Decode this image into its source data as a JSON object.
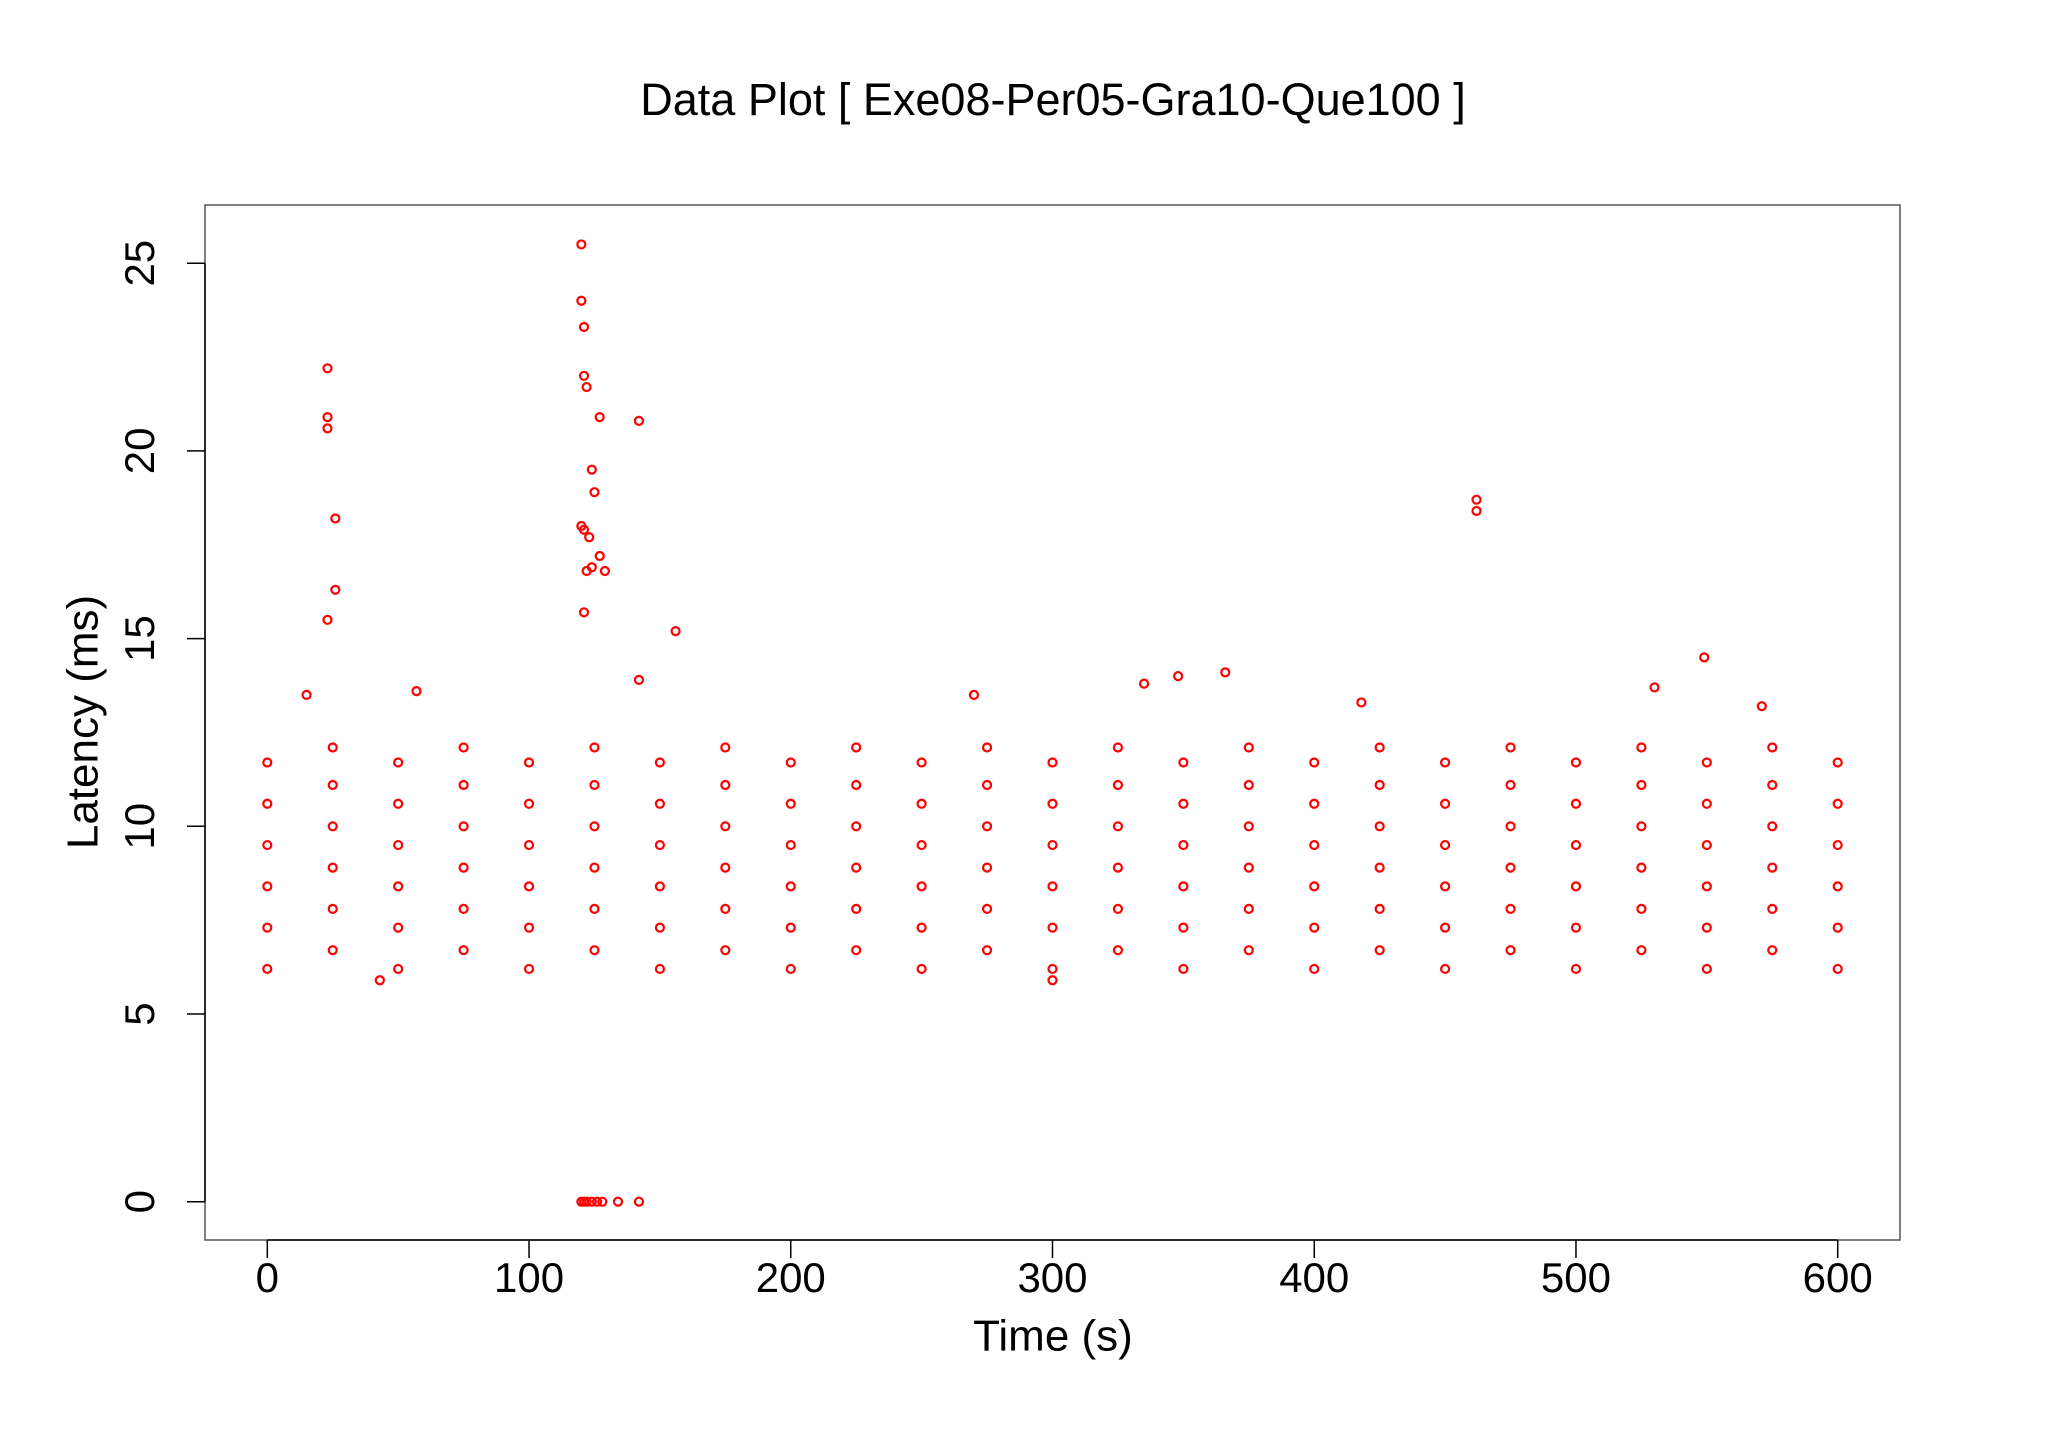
{
  "chart_data": {
    "type": "scatter",
    "title": "Data Plot [ Exe08-Per05-Gra10-Que100 ]",
    "x_label": "Time (s)",
    "y_label": "Latency (ms)",
    "color": "#ff0000",
    "xlim": [
      -23.8,
      623.8
    ],
    "ylim": [
      -1.02,
      26.55
    ],
    "xticks": [
      0,
      100,
      200,
      300,
      400,
      500,
      600
    ],
    "yticks": [
      0,
      5,
      10,
      15,
      20,
      25
    ],
    "x": [
      0,
      0,
      0,
      0,
      0,
      0,
      25,
      25,
      25,
      25,
      25,
      25,
      50,
      50,
      50,
      50,
      50,
      50,
      75,
      75,
      75,
      75,
      75,
      75,
      100,
      100,
      100,
      100,
      100,
      100,
      125,
      125,
      125,
      125,
      125,
      125,
      150,
      150,
      150,
      150,
      150,
      150,
      175,
      175,
      175,
      175,
      175,
      175,
      200,
      200,
      200,
      200,
      200,
      200,
      225,
      225,
      225,
      225,
      225,
      225,
      250,
      250,
      250,
      250,
      250,
      250,
      275,
      275,
      275,
      275,
      275,
      275,
      300,
      300,
      300,
      300,
      300,
      300,
      325,
      325,
      325,
      325,
      325,
      325,
      350,
      350,
      350,
      350,
      350,
      350,
      375,
      375,
      375,
      375,
      375,
      375,
      400,
      400,
      400,
      400,
      400,
      400,
      425,
      425,
      425,
      425,
      425,
      425,
      450,
      450,
      450,
      450,
      450,
      450,
      475,
      475,
      475,
      475,
      475,
      475,
      500,
      500,
      500,
      500,
      500,
      500,
      525,
      525,
      525,
      525,
      525,
      525,
      550,
      550,
      550,
      550,
      550,
      550,
      575,
      575,
      575,
      575,
      575,
      575,
      600,
      600,
      600,
      600,
      600,
      600,
      23,
      23,
      23,
      26,
      26,
      23,
      15,
      57,
      120,
      120,
      121,
      121,
      122,
      127,
      124,
      125,
      120,
      121,
      123,
      127,
      122,
      124,
      129,
      121,
      142,
      156,
      142,
      462,
      462,
      549,
      366,
      348,
      335,
      120,
      121,
      122,
      124,
      126,
      128,
      134,
      142,
      43,
      300,
      270,
      530,
      571,
      418
    ],
    "values": [
      6.2,
      7.3,
      8.4,
      9.5,
      10.6,
      11.7,
      6.7,
      7.8,
      8.9,
      10,
      11.1,
      12.1,
      6.2,
      7.3,
      8.4,
      9.5,
      10.6,
      11.7,
      6.7,
      7.8,
      8.9,
      10,
      11.1,
      12.1,
      6.2,
      7.3,
      8.4,
      9.5,
      10.6,
      11.7,
      6.7,
      7.8,
      8.9,
      10,
      11.1,
      12.1,
      6.2,
      7.3,
      8.4,
      9.5,
      10.6,
      11.7,
      6.7,
      7.8,
      8.9,
      10,
      11.1,
      12.1,
      6.2,
      7.3,
      8.4,
      9.5,
      10.6,
      11.7,
      6.7,
      7.8,
      8.9,
      10,
      11.1,
      12.1,
      6.2,
      7.3,
      8.4,
      9.5,
      10.6,
      11.7,
      6.7,
      7.8,
      8.9,
      10,
      11.1,
      12.1,
      6.2,
      7.3,
      8.4,
      9.5,
      10.6,
      11.7,
      6.7,
      7.8,
      8.9,
      10,
      11.1,
      12.1,
      6.2,
      7.3,
      8.4,
      9.5,
      10.6,
      11.7,
      6.7,
      7.8,
      8.9,
      10,
      11.1,
      12.1,
      6.2,
      7.3,
      8.4,
      9.5,
      10.6,
      11.7,
      6.7,
      7.8,
      8.9,
      10,
      11.1,
      12.1,
      6.2,
      7.3,
      8.4,
      9.5,
      10.6,
      11.7,
      6.7,
      7.8,
      8.9,
      10,
      11.1,
      12.1,
      6.2,
      7.3,
      8.4,
      9.5,
      10.6,
      11.7,
      6.7,
      7.8,
      8.9,
      10,
      11.1,
      12.1,
      6.2,
      7.3,
      8.4,
      9.5,
      10.6,
      11.7,
      6.7,
      7.8,
      8.9,
      10,
      11.1,
      12.1,
      6.2,
      7.3,
      8.4,
      9.5,
      10.6,
      11.7,
      22.2,
      20.9,
      20.6,
      18.2,
      16.3,
      15.5,
      13.5,
      13.6,
      25.5,
      24,
      23.3,
      22,
      21.7,
      20.9,
      19.5,
      18.9,
      18,
      17.9,
      17.7,
      17.2,
      16.8,
      16.9,
      16.8,
      15.7,
      20.8,
      15.2,
      13.9,
      18.7,
      18.4,
      14.5,
      14.1,
      14,
      13.8,
      0,
      0,
      0,
      0,
      0,
      0,
      0,
      0,
      5.9,
      5.9,
      13.5,
      13.7,
      13.2,
      13.3
    ]
  }
}
